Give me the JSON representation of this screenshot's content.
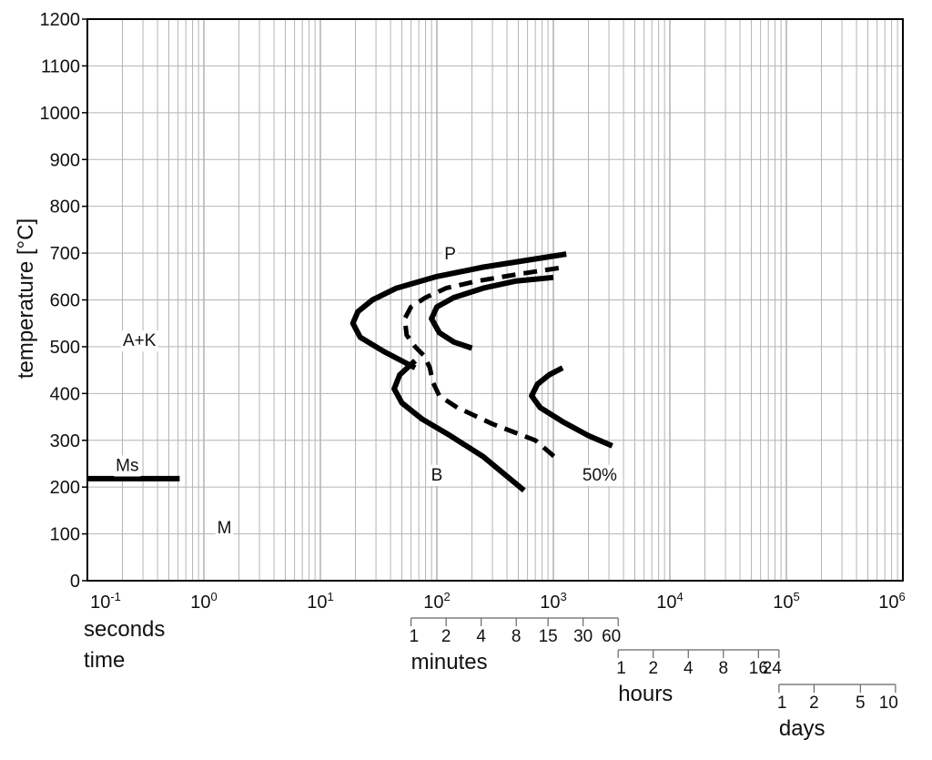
{
  "chart_data": {
    "type": "line",
    "title": "",
    "ylabel": "temperature [°C]",
    "xlabel_lines": [
      "seconds",
      "time"
    ],
    "x_scale": "log",
    "xlim": [
      0.1,
      1000000
    ],
    "ylim": [
      0,
      1200
    ],
    "grid": true,
    "y_ticks": [
      0,
      100,
      200,
      300,
      400,
      500,
      600,
      700,
      800,
      900,
      1000,
      1100,
      1200
    ],
    "x_ticks": [
      {
        "value": 0.1,
        "base": "10",
        "exp": "-1"
      },
      {
        "value": 1,
        "base": "10",
        "exp": "0"
      },
      {
        "value": 10,
        "base": "10",
        "exp": "1"
      },
      {
        "value": 100,
        "base": "10",
        "exp": "2"
      },
      {
        "value": 1000,
        "base": "10",
        "exp": "3"
      },
      {
        "value": 10000,
        "base": "10",
        "exp": "4"
      },
      {
        "value": 100000,
        "base": "10",
        "exp": "5"
      },
      {
        "value": 1000000,
        "base": "10",
        "exp": "6"
      }
    ],
    "time_scales": [
      {
        "unit": "minutes",
        "seconds_per_unit": 60,
        "ticks": [
          "1",
          "2",
          "4",
          "8",
          "15",
          "30",
          "60"
        ]
      },
      {
        "unit": "hours",
        "seconds_per_unit": 3600,
        "ticks": [
          "1",
          "2",
          "4",
          "8",
          "16",
          "24"
        ]
      },
      {
        "unit": "days",
        "seconds_per_unit": 86400,
        "ticks": [
          "1",
          "2",
          "5",
          "10"
        ]
      }
    ],
    "series": [
      {
        "style": "solid",
        "points": [
          [
            1290,
            698
          ],
          [
            250,
            670
          ],
          [
            100,
            650
          ],
          [
            45,
            625
          ],
          [
            28,
            600
          ],
          [
            21,
            575
          ],
          [
            19,
            550
          ],
          [
            22,
            520
          ],
          [
            35,
            490
          ],
          [
            65,
            455
          ]
        ]
      },
      {
        "style": "solid",
        "points": [
          [
            65,
            470
          ],
          [
            48,
            440
          ],
          [
            43,
            410
          ],
          [
            50,
            380
          ],
          [
            75,
            345
          ],
          [
            130,
            310
          ],
          [
            250,
            265
          ],
          [
            560,
            193
          ]
        ]
      },
      {
        "style": "dashed",
        "points": [
          [
            1110,
            668
          ],
          [
            500,
            655
          ],
          [
            220,
            640
          ],
          [
            120,
            625
          ],
          [
            80,
            605
          ],
          [
            60,
            585
          ],
          [
            53,
            560
          ],
          [
            55,
            525
          ],
          [
            65,
            500
          ],
          [
            78,
            480
          ],
          [
            87,
            455
          ],
          [
            92,
            425
          ],
          [
            105,
            395
          ],
          [
            150,
            370
          ],
          [
            300,
            335
          ],
          [
            700,
            300
          ],
          [
            1100,
            258
          ]
        ]
      },
      {
        "style": "solid",
        "points": [
          [
            1000,
            648
          ],
          [
            470,
            640
          ],
          [
            250,
            625
          ],
          [
            140,
            605
          ],
          [
            100,
            585
          ],
          [
            90,
            560
          ],
          [
            105,
            530
          ],
          [
            140,
            510
          ],
          [
            200,
            497
          ]
        ]
      },
      {
        "style": "solid",
        "points": [
          [
            1200,
            455
          ],
          [
            920,
            440
          ],
          [
            730,
            420
          ],
          [
            650,
            395
          ],
          [
            770,
            370
          ],
          [
            1200,
            340
          ],
          [
            2000,
            310
          ],
          [
            3200,
            288
          ]
        ]
      },
      {
        "style": "solid",
        "points": [
          [
            0.1,
            218
          ],
          [
            0.62,
            218
          ]
        ]
      }
    ],
    "annotations": [
      {
        "text": "P",
        "x": 130,
        "y": 700
      },
      {
        "text": "A+K",
        "x": 0.28,
        "y": 515
      },
      {
        "text": "Ms",
        "x": 0.22,
        "y": 248
      },
      {
        "text": "B",
        "x": 100,
        "y": 228
      },
      {
        "text": "50%",
        "x": 2500,
        "y": 228
      },
      {
        "text": "M",
        "x": 1.5,
        "y": 115
      }
    ]
  }
}
